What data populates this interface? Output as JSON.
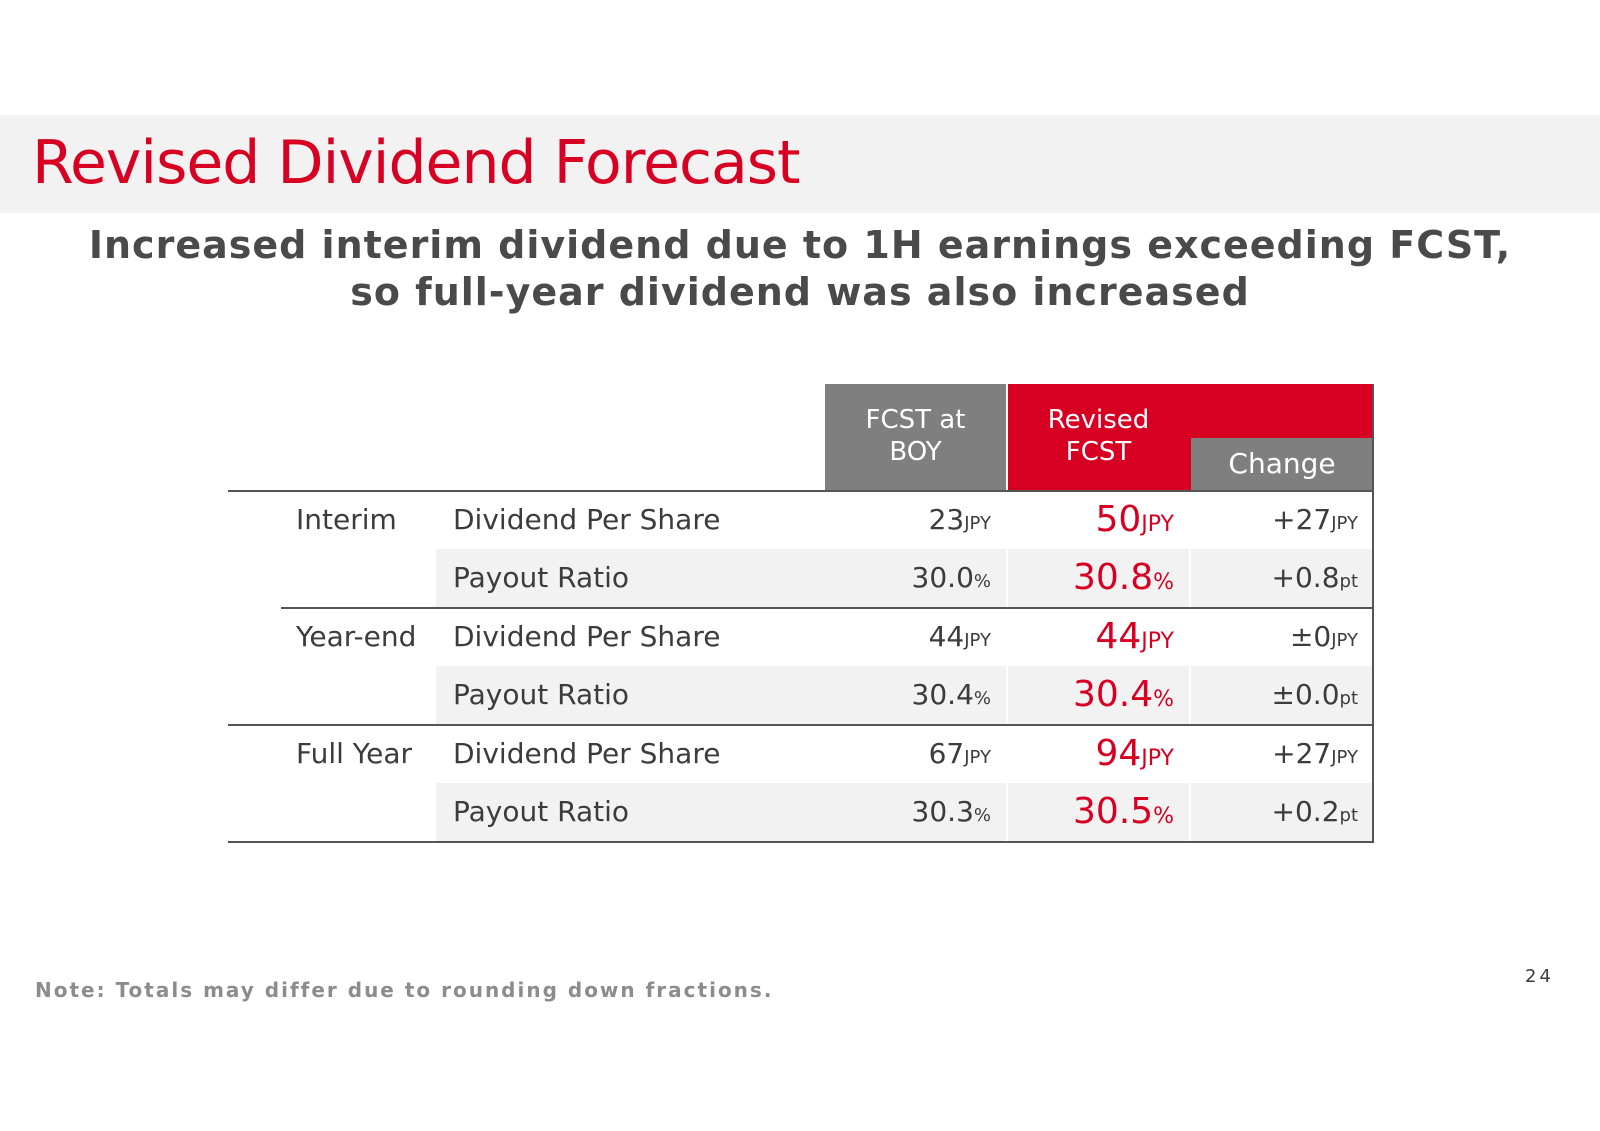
{
  "title": "Revised Dividend Forecast",
  "subtitle": {
    "line1": "Increased interim dividend due to 1H earnings exceeding FCST,",
    "line2": "so full-year dividend was also increased"
  },
  "table": {
    "headers": {
      "boy": "FCST at BOY",
      "revised": "Revised FCST",
      "change": "Change"
    },
    "rows": [
      {
        "group": "Interim",
        "item": "Dividend Per Share",
        "boy": "23",
        "boy_unit": "JPY",
        "rev": "50",
        "rev_unit": "JPY",
        "chg": "+27",
        "chg_unit": "JPY"
      },
      {
        "group": "",
        "item": "Payout Ratio",
        "boy": "30.0",
        "boy_unit": "%",
        "rev": "30.8",
        "rev_unit": "%",
        "chg": "+0.8",
        "chg_unit": "pt"
      },
      {
        "group": "Year-end",
        "item": "Dividend Per Share",
        "boy": "44",
        "boy_unit": "JPY",
        "rev": "44",
        "rev_unit": "JPY",
        "chg": "±0",
        "chg_unit": "JPY"
      },
      {
        "group": "",
        "item": "Payout Ratio",
        "boy": "30.4",
        "boy_unit": "%",
        "rev": "30.4",
        "rev_unit": "%",
        "chg": "±0.0",
        "chg_unit": "pt"
      },
      {
        "group": "Full Year",
        "item": "Dividend Per Share",
        "boy": "67",
        "boy_unit": "JPY",
        "rev": "94",
        "rev_unit": "JPY",
        "chg": "+27",
        "chg_unit": "JPY"
      },
      {
        "group": "",
        "item": "Payout Ratio",
        "boy": "30.3",
        "boy_unit": "%",
        "rev": "30.5",
        "rev_unit": "%",
        "chg": "+0.2",
        "chg_unit": "pt"
      }
    ]
  },
  "note": "Note: Totals may differ due to rounding down fractions.",
  "page_number": "24",
  "colors": {
    "accent": "#d70022",
    "header_gray": "#7f7f7f",
    "band": "#f2f2f2"
  }
}
